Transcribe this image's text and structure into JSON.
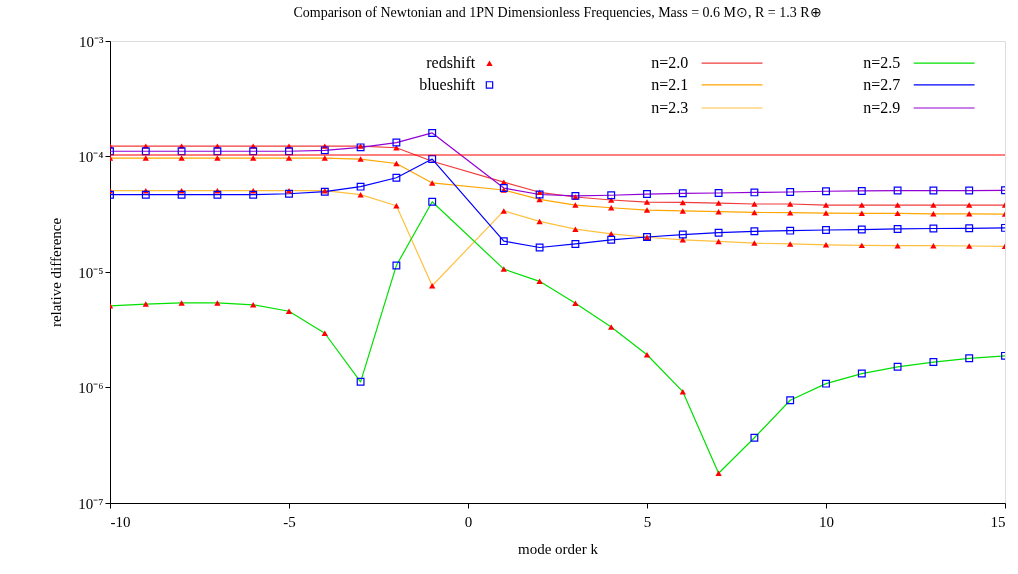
{
  "chart_data": {
    "type": "line",
    "title": "Comparison of Newtonian and 1PN Dimensionless Frequencies, Mass = 0.6 M⊙, R = 1.3 R⊕",
    "xlabel": "mode order k",
    "ylabel": "relative difference",
    "log": "y",
    "grid": false,
    "legend": "top",
    "marker": "none",
    "line_style": "solid",
    "xlim": [
      -10,
      15
    ],
    "xticks": [
      -10,
      -5,
      0,
      5,
      10,
      15
    ],
    "ylim": [
      1e-07,
      0.001
    ],
    "yticks": [
      {
        "value": 1e-07,
        "label": "10⁻⁷"
      },
      {
        "value": 1e-06,
        "label": "10⁻⁶"
      },
      {
        "value": 1e-05,
        "label": "10⁻⁵"
      },
      {
        "value": 0.0001,
        "label": "10⁻⁴"
      },
      {
        "value": 0.001,
        "label": "10⁻³"
      }
    ],
    "ref_lines": [
      {
        "axis": "y",
        "value": 0.000103,
        "color": "#ff0000"
      }
    ],
    "series": [
      {
        "name": "n=2.0",
        "color": "#f03c3c",
        "x": [
          -10,
          -9,
          -8,
          -7,
          -6,
          -5,
          -4,
          -3,
          -2,
          -1,
          1,
          2,
          3,
          4,
          5,
          6,
          7,
          8,
          9,
          10,
          11,
          12,
          13,
          14,
          15
        ],
        "values": [
          0.000123,
          0.000123,
          0.000123,
          0.000123,
          0.000123,
          0.000123,
          0.000123,
          0.000123,
          0.000119,
          9.1e-05,
          6e-05,
          4.9e-05,
          4.46e-05,
          4.2e-05,
          4.03e-05,
          4e-05,
          3.95e-05,
          3.88e-05,
          3.88e-05,
          3.8e-05,
          3.8e-05,
          3.8e-05,
          3.8e-05,
          3.8e-05,
          3.8e-05
        ]
      },
      {
        "name": "n=2.1",
        "color": "#ffa500",
        "x": [
          -10,
          -9,
          -8,
          -7,
          -6,
          -5,
          -4,
          -3,
          -2,
          -1,
          1,
          2,
          3,
          4,
          5,
          6,
          7,
          8,
          9,
          10,
          11,
          12,
          13,
          14,
          15
        ],
        "values": [
          9.7e-05,
          9.7e-05,
          9.7e-05,
          9.7e-05,
          9.7e-05,
          9.7e-05,
          9.7e-05,
          9.5e-05,
          8.7e-05,
          5.9e-05,
          5.13e-05,
          4.25e-05,
          3.8e-05,
          3.6e-05,
          3.44e-05,
          3.38e-05,
          3.33e-05,
          3.28e-05,
          3.26e-05,
          3.24e-05,
          3.22e-05,
          3.22e-05,
          3.19e-05,
          3.19e-05,
          3.17e-05
        ]
      },
      {
        "name": "n=2.3",
        "color": "#ffc040",
        "x": [
          -10,
          -9,
          -8,
          -7,
          -6,
          -5,
          -4,
          -3,
          -2,
          -1,
          1,
          2,
          3,
          4,
          5,
          6,
          7,
          8,
          9,
          10,
          11,
          12,
          13,
          14,
          15
        ],
        "values": [
          5.06e-05,
          5.06e-05,
          5.06e-05,
          5.06e-05,
          5.06e-05,
          5.06e-05,
          5.06e-05,
          4.67e-05,
          3.75e-05,
          7.6e-06,
          3.38e-05,
          2.74e-05,
          2.35e-05,
          2.14e-05,
          2e-05,
          1.9e-05,
          1.84e-05,
          1.78e-05,
          1.75e-05,
          1.72e-05,
          1.7e-05,
          1.69e-05,
          1.69e-05,
          1.68e-05,
          1.67e-05
        ]
      },
      {
        "name": "n=2.5",
        "color": "#00e000",
        "x": [
          -10,
          -9,
          -8,
          -7,
          -6,
          -5,
          -4,
          -3,
          -2,
          -1,
          1,
          2,
          3,
          4,
          5,
          6,
          7,
          8,
          9,
          10,
          11,
          12,
          13,
          14,
          15
        ],
        "values": [
          5.1e-06,
          5.28e-06,
          5.4e-06,
          5.4e-06,
          5.2e-06,
          4.57e-06,
          2.95e-06,
          1.12e-06,
          1.14e-05,
          4.06e-05,
          1.06e-05,
          8.3e-06,
          5.36e-06,
          3.34e-06,
          1.92e-06,
          9.2e-07,
          1.81e-07,
          3.67e-07,
          7.75e-07,
          1.08e-06,
          1.32e-06,
          1.51e-06,
          1.66e-06,
          1.79e-06,
          1.88e-06
        ]
      },
      {
        "name": "n=2.7",
        "color": "#0000ff",
        "x": [
          -10,
          -9,
          -8,
          -7,
          -6,
          -5,
          -4,
          -3,
          -2,
          -1,
          1,
          2,
          3,
          4,
          5,
          6,
          7,
          8,
          9,
          10,
          11,
          12,
          13,
          14,
          15
        ],
        "values": [
          4.67e-05,
          4.67e-05,
          4.67e-05,
          4.67e-05,
          4.67e-05,
          4.76e-05,
          4.96e-05,
          5.48e-05,
          6.55e-05,
          9.5e-05,
          1.85e-05,
          1.63e-05,
          1.75e-05,
          1.9e-05,
          2.01e-05,
          2.11e-05,
          2.19e-05,
          2.25e-05,
          2.28e-05,
          2.31e-05,
          2.33e-05,
          2.36e-05,
          2.38e-05,
          2.39e-05,
          2.41e-05
        ]
      },
      {
        "name": "n=2.9",
        "color": "#9400d3",
        "x": [
          -10,
          -9,
          -8,
          -7,
          -6,
          -5,
          -4,
          -3,
          -2,
          -1,
          1,
          2,
          3,
          4,
          5,
          6,
          7,
          8,
          9,
          10,
          11,
          12,
          13,
          14,
          15
        ],
        "values": [
          0.000111,
          0.000111,
          0.000111,
          0.000111,
          0.000111,
          0.000111,
          0.000113,
          0.00012,
          0.000132,
          0.00016,
          5.33e-05,
          4.69e-05,
          4.56e-05,
          4.62e-05,
          4.73e-05,
          4.8e-05,
          4.83e-05,
          4.89e-05,
          4.93e-05,
          5e-05,
          5.03e-05,
          5.07e-05,
          5.07e-05,
          5.07e-05,
          5.1e-05
        ]
      },
      {
        "name": "redshift",
        "type": "scatter",
        "marker": "triangle",
        "color": "#ff0000",
        "x": [
          -10,
          -9,
          -8,
          -7,
          -6,
          -5,
          -4,
          -3,
          -2,
          1,
          2,
          3,
          4,
          5,
          6,
          7,
          8,
          9,
          10,
          11,
          12,
          13,
          14,
          15,
          -10,
          -9,
          -8,
          -7,
          -6,
          -5,
          -4,
          -3,
          -2,
          -1,
          1,
          2,
          3,
          4,
          5,
          6,
          7,
          8,
          9,
          10,
          11,
          12,
          13,
          14,
          15,
          -10,
          -9,
          -8,
          -7,
          -6,
          -5,
          -4,
          -3,
          -2,
          -1,
          1,
          2,
          3,
          4,
          5,
          6,
          7,
          8,
          9,
          10,
          11,
          12,
          13,
          14,
          15,
          -10,
          -9,
          -8,
          -7,
          -6,
          -5,
          -4,
          1,
          2,
          3,
          4,
          5,
          6,
          7
        ],
        "values": [
          0.000123,
          0.000123,
          0.000123,
          0.000123,
          0.000123,
          0.000123,
          0.000123,
          0.000123,
          0.000119,
          6e-05,
          4.9e-05,
          4.46e-05,
          4.2e-05,
          4.03e-05,
          4e-05,
          3.95e-05,
          3.88e-05,
          3.88e-05,
          3.8e-05,
          3.8e-05,
          3.8e-05,
          3.8e-05,
          3.8e-05,
          3.8e-05,
          9.7e-05,
          9.7e-05,
          9.7e-05,
          9.7e-05,
          9.7e-05,
          9.7e-05,
          9.7e-05,
          9.5e-05,
          8.7e-05,
          5.9e-05,
          5.13e-05,
          4.25e-05,
          3.8e-05,
          3.6e-05,
          3.44e-05,
          3.38e-05,
          3.33e-05,
          3.28e-05,
          3.26e-05,
          3.24e-05,
          3.22e-05,
          3.22e-05,
          3.19e-05,
          3.19e-05,
          3.17e-05,
          5.06e-05,
          5.06e-05,
          5.06e-05,
          5.06e-05,
          5.06e-05,
          5.06e-05,
          5.06e-05,
          4.67e-05,
          3.75e-05,
          7.6e-06,
          3.38e-05,
          2.74e-05,
          2.35e-05,
          2.14e-05,
          2e-05,
          1.9e-05,
          1.84e-05,
          1.78e-05,
          1.75e-05,
          1.72e-05,
          1.7e-05,
          1.69e-05,
          1.69e-05,
          1.68e-05,
          1.67e-05,
          5.1e-06,
          5.28e-06,
          5.4e-06,
          5.4e-06,
          5.2e-06,
          4.57e-06,
          2.95e-06,
          1.06e-05,
          8.3e-06,
          5.36e-06,
          3.34e-06,
          1.92e-06,
          9.2e-07,
          1.81e-07
        ]
      },
      {
        "name": "blueshift",
        "type": "scatter",
        "marker": "square",
        "color": "#0000ff",
        "x": [
          -10,
          -9,
          -8,
          -7,
          -6,
          -5,
          -4,
          -3,
          -2,
          -1,
          1,
          2,
          3,
          4,
          5,
          6,
          7,
          8,
          9,
          10,
          11,
          12,
          13,
          14,
          15,
          -10,
          -9,
          -8,
          -7,
          -6,
          -5,
          -4,
          -3,
          -2,
          -1,
          1,
          2,
          3,
          4,
          5,
          6,
          7,
          8,
          9,
          10,
          11,
          12,
          13,
          14,
          15,
          -3,
          -2,
          -1,
          8,
          9,
          10,
          11,
          12,
          13,
          14,
          15
        ],
        "values": [
          4.67e-05,
          4.67e-05,
          4.67e-05,
          4.67e-05,
          4.67e-05,
          4.76e-05,
          4.96e-05,
          5.48e-05,
          6.55e-05,
          9.5e-05,
          1.85e-05,
          1.63e-05,
          1.75e-05,
          1.9e-05,
          2.01e-05,
          2.11e-05,
          2.19e-05,
          2.25e-05,
          2.28e-05,
          2.31e-05,
          2.33e-05,
          2.36e-05,
          2.38e-05,
          2.39e-05,
          2.41e-05,
          0.000111,
          0.000111,
          0.000111,
          0.000111,
          0.000111,
          0.000111,
          0.000113,
          0.00012,
          0.000132,
          0.00016,
          5.33e-05,
          4.69e-05,
          4.56e-05,
          4.62e-05,
          4.73e-05,
          4.8e-05,
          4.83e-05,
          4.89e-05,
          4.93e-05,
          5e-05,
          5.03e-05,
          5.07e-05,
          5.07e-05,
          5.07e-05,
          5.1e-05,
          1.12e-06,
          1.14e-05,
          4.06e-05,
          3.67e-07,
          7.75e-07,
          1.08e-06,
          1.32e-06,
          1.51e-06,
          1.66e-06,
          1.79e-06,
          1.88e-06
        ]
      }
    ]
  }
}
